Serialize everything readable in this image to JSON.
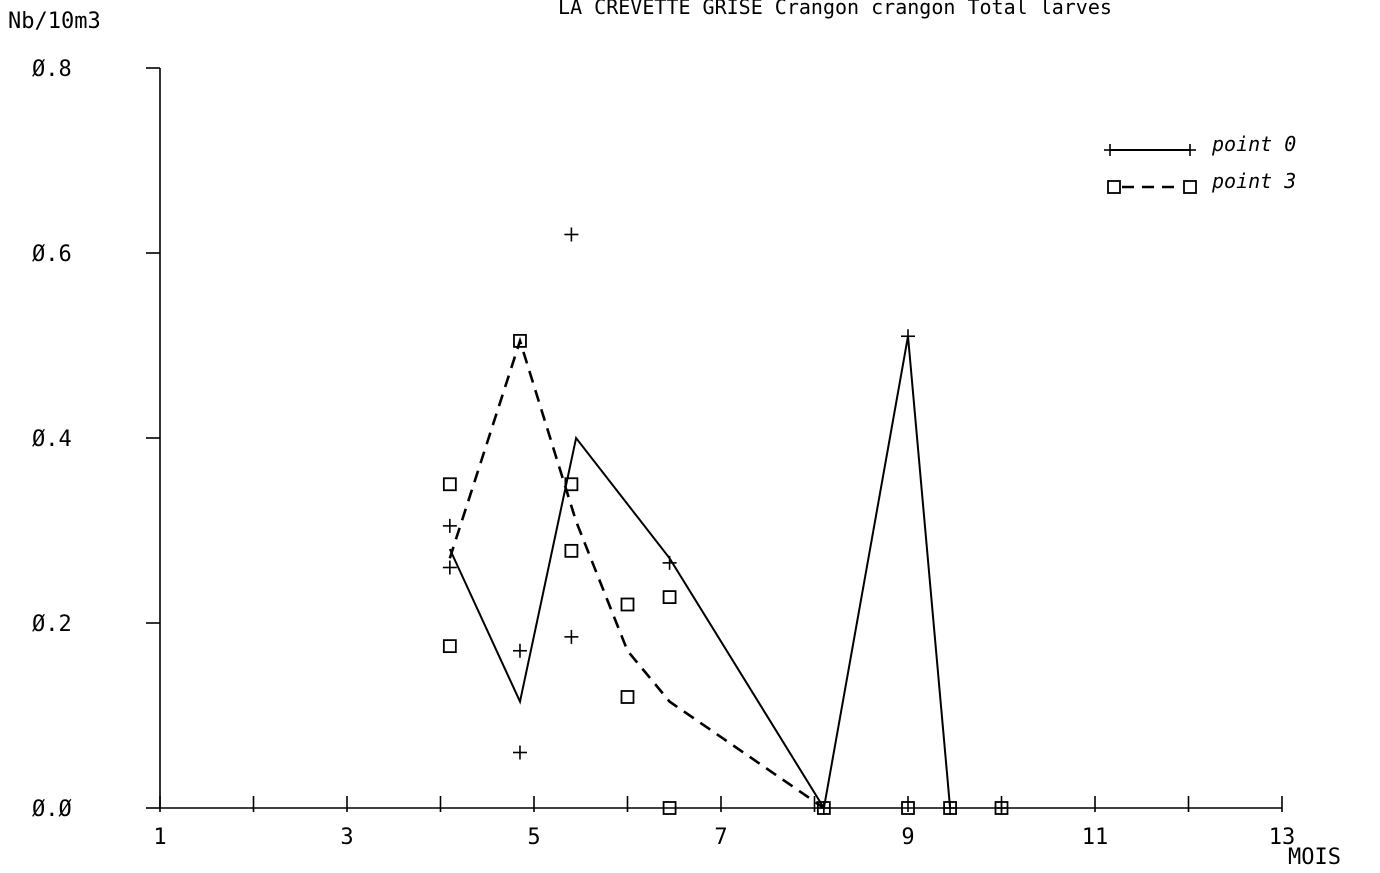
{
  "chart_data": {
    "type": "line",
    "title": "LA CREVETTE GRISE Crangon crangon Total larves",
    "xlabel": "MOIS",
    "ylabel": "Nb/10m3",
    "xlim": [
      1,
      13
    ],
    "ylim": [
      0,
      0.8
    ],
    "x_ticks": [
      "1",
      "3",
      "5",
      "7",
      "9",
      "11",
      "13"
    ],
    "y_ticks": [
      "0.0",
      "0.2",
      "0.4",
      "0.6",
      "0.8"
    ],
    "legend_position": "top-right",
    "grid": false,
    "series": [
      {
        "name": "point 0",
        "line_style": "solid",
        "marker": "plus",
        "line": [
          {
            "x": 4.1,
            "y": 0.28
          },
          {
            "x": 4.85,
            "y": 0.115
          },
          {
            "x": 5.45,
            "y": 0.4
          },
          {
            "x": 6.45,
            "y": 0.27
          },
          {
            "x": 8.1,
            "y": 0.0
          },
          {
            "x": 9.0,
            "y": 0.51
          },
          {
            "x": 9.45,
            "y": 0.0
          }
        ],
        "points": [
          {
            "x": 4.1,
            "y": 0.305
          },
          {
            "x": 4.1,
            "y": 0.26
          },
          {
            "x": 4.85,
            "y": 0.17
          },
          {
            "x": 4.85,
            "y": 0.06
          },
          {
            "x": 5.4,
            "y": 0.62
          },
          {
            "x": 5.4,
            "y": 0.185
          },
          {
            "x": 6.45,
            "y": 0.265
          },
          {
            "x": 8.1,
            "y": 0.0
          },
          {
            "x": 9.0,
            "y": 0.51
          },
          {
            "x": 9.45,
            "y": 0.0
          },
          {
            "x": 10.0,
            "y": 0.0
          }
        ]
      },
      {
        "name": "point 3",
        "line_style": "dashed",
        "marker": "square",
        "line": [
          {
            "x": 4.1,
            "y": 0.27
          },
          {
            "x": 4.85,
            "y": 0.505
          },
          {
            "x": 5.45,
            "y": 0.31
          },
          {
            "x": 6.0,
            "y": 0.17
          },
          {
            "x": 6.45,
            "y": 0.115
          },
          {
            "x": 8.1,
            "y": 0.0
          }
        ],
        "points": [
          {
            "x": 4.1,
            "y": 0.35
          },
          {
            "x": 4.1,
            "y": 0.175
          },
          {
            "x": 4.85,
            "y": 0.505
          },
          {
            "x": 5.4,
            "y": 0.35
          },
          {
            "x": 5.4,
            "y": 0.278
          },
          {
            "x": 6.0,
            "y": 0.22
          },
          {
            "x": 6.0,
            "y": 0.12
          },
          {
            "x": 6.45,
            "y": 0.228
          },
          {
            "x": 6.45,
            "y": 0.0
          },
          {
            "x": 8.1,
            "y": 0.0
          },
          {
            "x": 9.0,
            "y": 0.0
          },
          {
            "x": 9.45,
            "y": 0.0
          },
          {
            "x": 10.0,
            "y": 0.0
          }
        ]
      }
    ]
  }
}
